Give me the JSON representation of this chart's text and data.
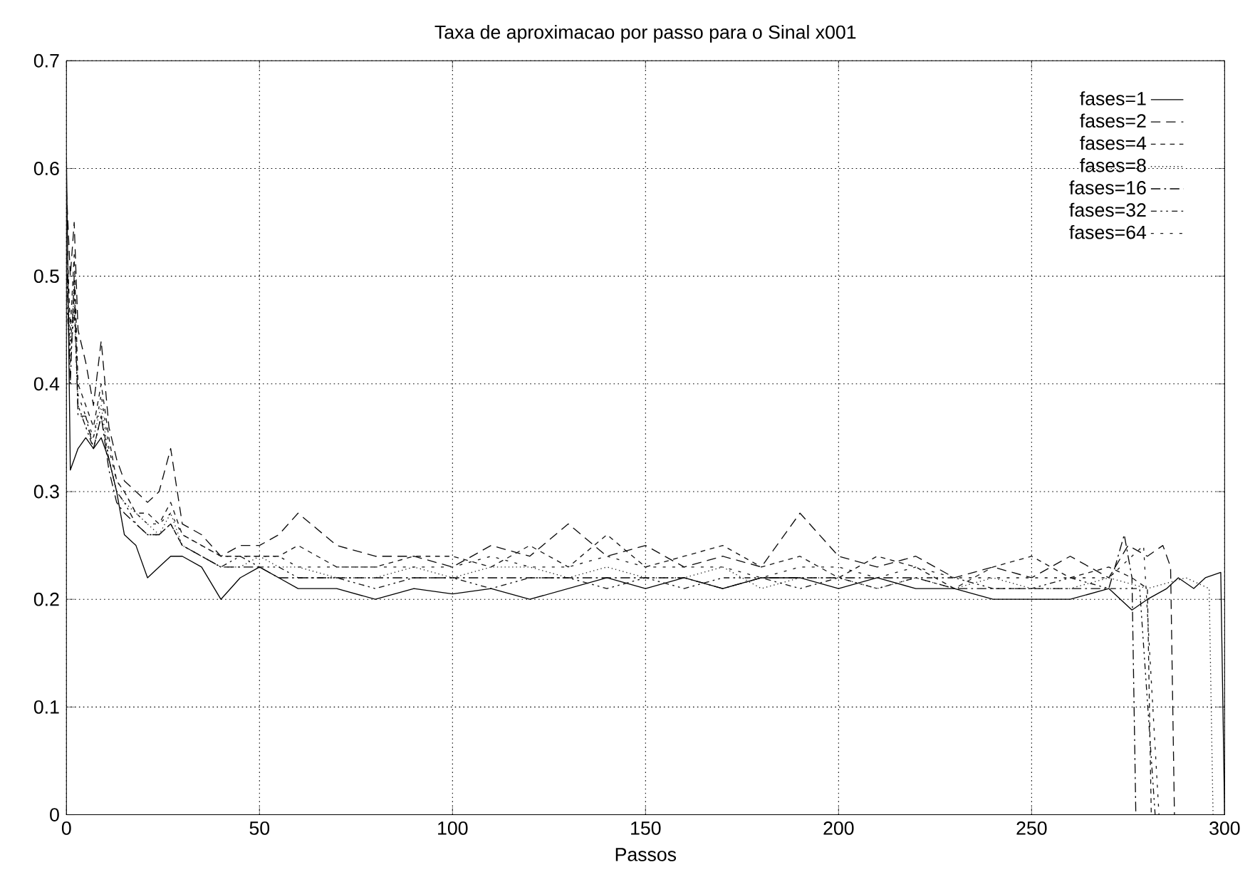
{
  "chart_data": {
    "type": "line",
    "title": "Taxa de  aproximacao por passo para o Sinal x001",
    "xlabel": "Passos",
    "xlim": [
      0,
      300
    ],
    "ylim": [
      0,
      0.7
    ],
    "xticks": [
      0,
      50,
      100,
      150,
      200,
      250,
      300
    ],
    "yticks": [
      0,
      0.1,
      0.2,
      0.3,
      0.4,
      0.5,
      0.6,
      0.7
    ],
    "grid": true,
    "legend": "top right",
    "marker": "none",
    "series": [
      {
        "name": "fases=1",
        "color": "#000000",
        "line_style": "solid",
        "x": [
          0,
          1,
          2,
          3,
          5,
          7,
          9,
          11,
          13,
          15,
          18,
          21,
          24,
          27,
          30,
          35,
          40,
          45,
          50,
          55,
          60,
          70,
          80,
          90,
          100,
          110,
          120,
          130,
          140,
          150,
          160,
          170,
          180,
          190,
          200,
          210,
          220,
          230,
          240,
          250,
          260,
          270,
          276,
          280,
          285,
          288,
          292,
          295,
          299,
          300
        ],
        "values": [
          0.61,
          0.32,
          0.33,
          0.34,
          0.35,
          0.34,
          0.35,
          0.33,
          0.3,
          0.26,
          0.25,
          0.22,
          0.23,
          0.24,
          0.24,
          0.23,
          0.2,
          0.22,
          0.23,
          0.22,
          0.21,
          0.21,
          0.2,
          0.21,
          0.205,
          0.21,
          0.2,
          0.21,
          0.22,
          0.21,
          0.22,
          0.21,
          0.22,
          0.22,
          0.21,
          0.22,
          0.21,
          0.21,
          0.2,
          0.2,
          0.2,
          0.21,
          0.19,
          0.2,
          0.21,
          0.22,
          0.21,
          0.22,
          0.225,
          0
        ]
      },
      {
        "name": "fases=2",
        "color": "#0a0a0a",
        "line_style": "dashed",
        "x": [
          0,
          1,
          2,
          3,
          5,
          7,
          9,
          11,
          13,
          15,
          18,
          21,
          24,
          27,
          30,
          35,
          40,
          45,
          50,
          55,
          60,
          70,
          80,
          90,
          100,
          110,
          120,
          130,
          140,
          150,
          160,
          170,
          180,
          190,
          200,
          210,
          220,
          230,
          240,
          250,
          260,
          270,
          275,
          280,
          284,
          286,
          287
        ],
        "values": [
          0.58,
          0.5,
          0.55,
          0.45,
          0.42,
          0.38,
          0.44,
          0.36,
          0.33,
          0.31,
          0.3,
          0.29,
          0.3,
          0.34,
          0.27,
          0.26,
          0.24,
          0.25,
          0.25,
          0.26,
          0.28,
          0.25,
          0.24,
          0.24,
          0.23,
          0.25,
          0.24,
          0.27,
          0.24,
          0.25,
          0.23,
          0.24,
          0.23,
          0.28,
          0.24,
          0.23,
          0.24,
          0.22,
          0.23,
          0.22,
          0.24,
          0.22,
          0.25,
          0.24,
          0.25,
          0.23,
          0
        ]
      },
      {
        "name": "fases=4",
        "color": "#141414",
        "line_style": "densely dashed",
        "x": [
          0,
          1,
          2,
          3,
          5,
          7,
          9,
          11,
          13,
          15,
          18,
          21,
          24,
          27,
          30,
          35,
          40,
          45,
          50,
          55,
          60,
          70,
          80,
          90,
          100,
          110,
          120,
          130,
          140,
          150,
          160,
          170,
          180,
          190,
          200,
          210,
          220,
          230,
          240,
          250,
          260,
          270,
          276,
          280,
          281
        ],
        "values": [
          0.55,
          0.45,
          0.52,
          0.4,
          0.38,
          0.36,
          0.4,
          0.35,
          0.31,
          0.3,
          0.28,
          0.28,
          0.27,
          0.29,
          0.26,
          0.25,
          0.24,
          0.24,
          0.24,
          0.24,
          0.25,
          0.23,
          0.23,
          0.24,
          0.24,
          0.23,
          0.25,
          0.23,
          0.26,
          0.23,
          0.24,
          0.25,
          0.23,
          0.24,
          0.22,
          0.24,
          0.23,
          0.21,
          0.23,
          0.24,
          0.22,
          0.23,
          0.22,
          0.21,
          0
        ]
      },
      {
        "name": "fases=8",
        "color": "#1e1e1e",
        "line_style": "dotted",
        "x": [
          0,
          1,
          2,
          3,
          5,
          7,
          9,
          11,
          13,
          15,
          18,
          21,
          24,
          27,
          30,
          35,
          40,
          45,
          50,
          55,
          60,
          70,
          80,
          90,
          100,
          110,
          120,
          130,
          140,
          150,
          160,
          170,
          180,
          190,
          200,
          210,
          220,
          230,
          240,
          250,
          260,
          270,
          280,
          290,
          296,
          297
        ],
        "values": [
          0.5,
          0.44,
          0.48,
          0.38,
          0.36,
          0.35,
          0.38,
          0.33,
          0.3,
          0.29,
          0.28,
          0.27,
          0.26,
          0.28,
          0.25,
          0.24,
          0.23,
          0.23,
          0.24,
          0.23,
          0.23,
          0.22,
          0.22,
          0.23,
          0.22,
          0.23,
          0.23,
          0.22,
          0.23,
          0.22,
          0.22,
          0.23,
          0.21,
          0.22,
          0.22,
          0.21,
          0.22,
          0.21,
          0.22,
          0.21,
          0.21,
          0.22,
          0.21,
          0.22,
          0.21,
          0
        ]
      },
      {
        "name": "fases=16",
        "color": "#050505",
        "line_style": "dashdot",
        "x": [
          0,
          1,
          2,
          3,
          5,
          7,
          9,
          11,
          13,
          15,
          18,
          21,
          24,
          27,
          30,
          35,
          40,
          45,
          50,
          55,
          60,
          70,
          80,
          90,
          100,
          110,
          120,
          130,
          140,
          150,
          160,
          170,
          180,
          190,
          200,
          210,
          220,
          230,
          240,
          250,
          260,
          270,
          274,
          276,
          277
        ],
        "values": [
          0.52,
          0.4,
          0.5,
          0.37,
          0.37,
          0.34,
          0.37,
          0.32,
          0.29,
          0.28,
          0.27,
          0.26,
          0.26,
          0.27,
          0.25,
          0.24,
          0.23,
          0.23,
          0.23,
          0.22,
          0.22,
          0.22,
          0.22,
          0.22,
          0.22,
          0.22,
          0.22,
          0.22,
          0.22,
          0.22,
          0.22,
          0.21,
          0.22,
          0.22,
          0.22,
          0.22,
          0.22,
          0.21,
          0.21,
          0.21,
          0.21,
          0.21,
          0.26,
          0.22,
          0
        ]
      },
      {
        "name": "fases=32",
        "color": "#0f0f0f",
        "line_style": "loosely dashdot",
        "x": [
          0,
          1,
          2,
          3,
          5,
          7,
          9,
          11,
          13,
          15,
          18,
          21,
          24,
          27,
          30,
          35,
          40,
          45,
          50,
          55,
          60,
          70,
          80,
          90,
          100,
          110,
          120,
          130,
          140,
          150,
          160,
          170,
          180,
          190,
          200,
          210,
          220,
          230,
          240,
          250,
          260,
          270,
          278,
          282
        ],
        "values": [
          0.48,
          0.42,
          0.47,
          0.38,
          0.36,
          0.34,
          0.37,
          0.33,
          0.3,
          0.29,
          0.27,
          0.26,
          0.26,
          0.27,
          0.25,
          0.24,
          0.23,
          0.24,
          0.23,
          0.23,
          0.22,
          0.22,
          0.21,
          0.22,
          0.22,
          0.21,
          0.22,
          0.22,
          0.21,
          0.22,
          0.21,
          0.22,
          0.22,
          0.21,
          0.22,
          0.21,
          0.22,
          0.22,
          0.21,
          0.21,
          0.22,
          0.21,
          0.21,
          0
        ]
      },
      {
        "name": "fases=64",
        "color": "#191919",
        "line_style": "loosely dashed",
        "x": [
          0,
          1,
          2,
          3,
          5,
          7,
          9,
          11,
          13,
          15,
          18,
          21,
          24,
          27,
          30,
          35,
          40,
          45,
          50,
          55,
          60,
          70,
          80,
          90,
          100,
          110,
          120,
          130,
          140,
          150,
          160,
          170,
          180,
          190,
          200,
          210,
          220,
          230,
          240,
          250,
          260,
          270,
          279,
          283
        ],
        "values": [
          0.5,
          0.43,
          0.49,
          0.39,
          0.37,
          0.35,
          0.39,
          0.34,
          0.31,
          0.3,
          0.28,
          0.27,
          0.27,
          0.28,
          0.26,
          0.25,
          0.24,
          0.24,
          0.24,
          0.24,
          0.23,
          0.23,
          0.23,
          0.23,
          0.23,
          0.24,
          0.23,
          0.23,
          0.24,
          0.23,
          0.23,
          0.23,
          0.22,
          0.23,
          0.23,
          0.22,
          0.23,
          0.22,
          0.22,
          0.22,
          0.22,
          0.22,
          0.25,
          0
        ]
      }
    ]
  }
}
